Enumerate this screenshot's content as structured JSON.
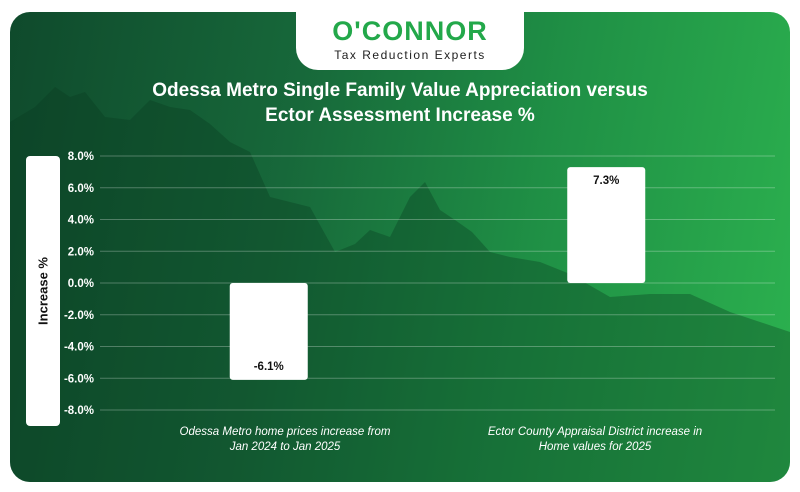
{
  "brand": {
    "name": "O'CONNOR",
    "tagline": "Tax Reduction Experts"
  },
  "colors": {
    "brand_green": "#23a84a",
    "bar": "#ffffff",
    "text": "#ffffff"
  },
  "chart_data": {
    "type": "bar",
    "title": "Odessa Metro Single Family Value Appreciation versus Ector Assessment Increase %",
    "title_lines": [
      "Odessa Metro Single Family Value Appreciation versus",
      "Ector Assessment Increase %"
    ],
    "ylabel": "Increase %",
    "xlabel": "",
    "ylim": [
      -8.0,
      8.0
    ],
    "yticks": [
      8.0,
      6.0,
      4.0,
      2.0,
      0.0,
      -2.0,
      -4.0,
      -6.0,
      -8.0
    ],
    "ytick_labels": [
      "8.0%",
      "6.0%",
      "4.0%",
      "2.0%",
      "0.0%",
      "-2.0%",
      "-4.0%",
      "-6.0%",
      "-8.0%"
    ],
    "grid": true,
    "categories": [
      "Odessa Metro home prices increase from Jan 2024 to Jan 2025",
      "Ector County Appraisal District increase in Home values for 2025"
    ],
    "category_lines": [
      [
        "Odessa Metro home prices increase from",
        "Jan 2024 to Jan 2025"
      ],
      [
        "Ector County Appraisal District increase in",
        "Home values for 2025"
      ]
    ],
    "values": [
      -6.1,
      7.3
    ],
    "data_labels": [
      "-6.1%",
      "7.3%"
    ]
  }
}
